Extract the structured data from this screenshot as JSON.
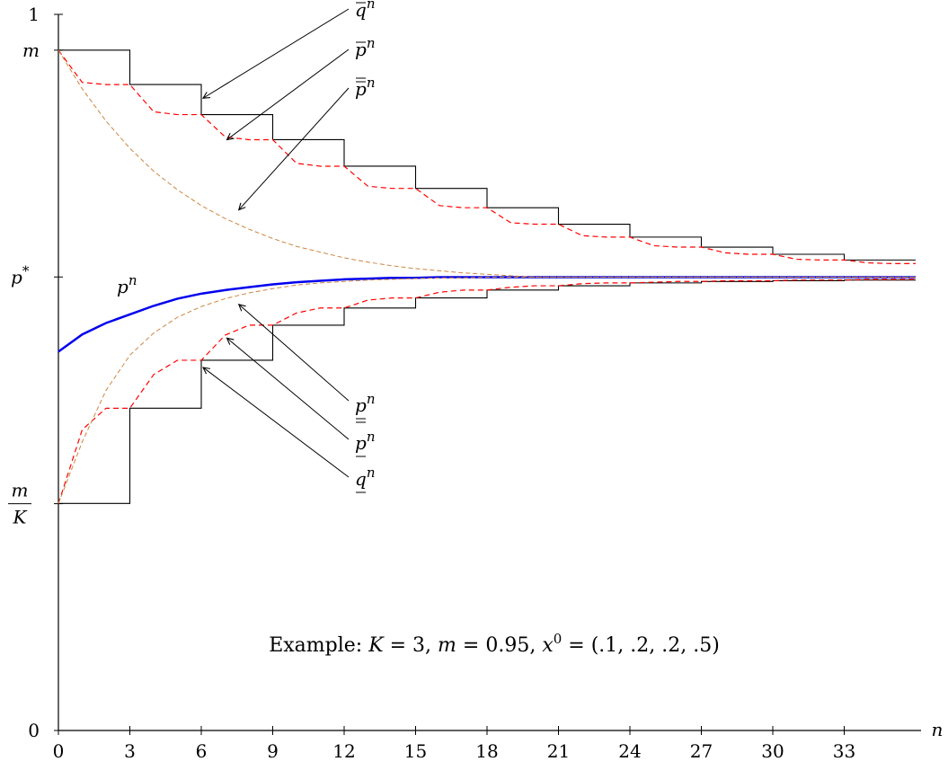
{
  "chart_data": {
    "type": "line",
    "title": "",
    "xlabel": "n",
    "ylabel": "",
    "xlim": [
      0,
      36
    ],
    "ylim": [
      0,
      1
    ],
    "x_ticks": [
      0,
      3,
      6,
      9,
      12,
      15,
      18,
      21,
      24,
      27,
      30,
      33
    ],
    "y_ticks": [
      {
        "value": 0,
        "label": "0"
      },
      {
        "value": 0.3167,
        "label": "m/K",
        "num": "m",
        "den": "K"
      },
      {
        "value": 0.6333,
        "label": "p*",
        "base": "p",
        "sup": "*"
      },
      {
        "value": 0.95,
        "label": "m"
      },
      {
        "value": 1,
        "label": "1"
      }
    ],
    "grid": false,
    "legend": "none",
    "caption": {
      "prefix": "Example: ",
      "k_var": "K",
      "k_val": " = 3, ",
      "m_var": "m",
      "m_val": " = 0.95, ",
      "x_var": "x",
      "x_sup": "0",
      "x_val": " = (.1, .2, .2, .5)"
    },
    "series": [
      {
        "name": "p^n",
        "label_base": "p",
        "label_sup": "n",
        "color": "#0000ee",
        "style": "solid",
        "x": [
          0,
          1,
          2,
          3,
          4,
          5,
          6,
          7,
          8,
          9,
          10,
          11,
          12,
          13,
          14,
          15,
          16,
          17,
          18,
          19,
          20,
          21,
          22,
          23,
          24,
          25,
          26,
          27,
          28,
          29,
          30,
          31,
          32,
          33,
          34,
          35,
          36
        ],
        "y": [
          0.529,
          0.553,
          0.569,
          0.581,
          0.593,
          0.603,
          0.61,
          0.615,
          0.619,
          0.623,
          0.626,
          0.628,
          0.63,
          0.631,
          0.632,
          0.632,
          0.633,
          0.633,
          0.633,
          0.633,
          0.633,
          0.633,
          0.633,
          0.633,
          0.633,
          0.633,
          0.633,
          0.633,
          0.633,
          0.633,
          0.633,
          0.633,
          0.633,
          0.633,
          0.633,
          0.633,
          0.633
        ]
      },
      {
        "name": "q-bar^n",
        "label_base": "q",
        "label_sup": "n",
        "label_deco": "over",
        "color": "#000000",
        "style": "step",
        "x": [
          0,
          3,
          6,
          9,
          12,
          15,
          18,
          21,
          24,
          27,
          30,
          33,
          36
        ],
        "y": [
          0.95,
          0.902,
          0.86,
          0.825,
          0.788,
          0.757,
          0.73,
          0.707,
          0.689,
          0.675,
          0.665,
          0.657,
          0.657
        ]
      },
      {
        "name": "q-under^n",
        "label_base": "q",
        "label_sup": "n",
        "label_deco": "under",
        "color": "#000000",
        "style": "step",
        "x": [
          0,
          3,
          6,
          9,
          12,
          15,
          18,
          21,
          24,
          27,
          30,
          33,
          36
        ],
        "y": [
          0.317,
          0.45,
          0.517,
          0.566,
          0.59,
          0.604,
          0.615,
          0.621,
          0.625,
          0.627,
          0.628,
          0.629,
          0.629
        ]
      },
      {
        "name": "p-bar^n",
        "label_base": "p",
        "label_sup": "n",
        "label_deco": "over",
        "color": "#ff0000",
        "style": "dashed",
        "x": [
          0,
          1,
          2,
          3,
          4,
          5,
          6,
          7,
          8,
          9,
          10,
          11,
          12,
          13,
          14,
          15,
          16,
          17,
          18,
          19,
          20,
          21,
          22,
          23,
          24,
          25,
          26,
          27,
          28,
          29,
          30,
          31,
          32,
          33,
          34,
          35,
          36
        ],
        "y": [
          0.95,
          0.905,
          0.902,
          0.902,
          0.864,
          0.86,
          0.86,
          0.829,
          0.825,
          0.825,
          0.792,
          0.788,
          0.788,
          0.76,
          0.757,
          0.757,
          0.733,
          0.73,
          0.73,
          0.709,
          0.707,
          0.707,
          0.691,
          0.689,
          0.689,
          0.677,
          0.675,
          0.675,
          0.667,
          0.665,
          0.665,
          0.658,
          0.657,
          0.657,
          0.653,
          0.652,
          0.652
        ]
      },
      {
        "name": "p-under^n",
        "label_base": "p",
        "label_sup": "n",
        "label_deco": "under",
        "color": "#ff0000",
        "style": "dashed",
        "x": [
          0,
          1,
          2,
          3,
          4,
          5,
          6,
          7,
          8,
          9,
          10,
          11,
          12,
          13,
          14,
          15,
          16,
          17,
          18,
          19,
          20,
          21,
          22,
          23,
          24,
          25,
          26,
          27,
          28,
          29,
          30,
          31,
          32,
          33,
          34,
          35,
          36
        ],
        "y": [
          0.317,
          0.42,
          0.45,
          0.45,
          0.497,
          0.517,
          0.517,
          0.552,
          0.566,
          0.566,
          0.583,
          0.59,
          0.59,
          0.601,
          0.604,
          0.604,
          0.612,
          0.615,
          0.615,
          0.619,
          0.621,
          0.621,
          0.624,
          0.625,
          0.625,
          0.626,
          0.627,
          0.627,
          0.628,
          0.628,
          0.628,
          0.629,
          0.629,
          0.629,
          0.63,
          0.63,
          0.63
        ]
      },
      {
        "name": "p-doublebar^n",
        "label_base": "p",
        "label_sup": "n",
        "label_deco": "double-over",
        "color": "#cd853f",
        "style": "dashed-thin",
        "x": [
          0,
          1,
          2,
          3,
          4,
          5,
          6,
          7,
          8,
          9,
          10,
          11,
          12,
          13,
          14,
          15,
          16,
          17,
          18,
          19,
          20,
          21,
          22,
          23,
          24,
          25,
          26,
          27,
          28,
          29,
          30,
          31,
          32,
          33,
          34,
          35,
          36
        ],
        "y": [
          0.95,
          0.896,
          0.851,
          0.813,
          0.781,
          0.755,
          0.733,
          0.715,
          0.7,
          0.687,
          0.676,
          0.668,
          0.66,
          0.654,
          0.649,
          0.645,
          0.642,
          0.639,
          0.637,
          0.635,
          0.633,
          0.633,
          0.633,
          0.633,
          0.633,
          0.633,
          0.633,
          0.633,
          0.633,
          0.633,
          0.633,
          0.633,
          0.633,
          0.633,
          0.633,
          0.633,
          0.633
        ]
      },
      {
        "name": "p-doubleunder^n",
        "label_base": "p",
        "label_sup": "n",
        "label_deco": "double-under",
        "color": "#cd853f",
        "style": "dashed-thin",
        "x": [
          0,
          1,
          2,
          3,
          4,
          5,
          6,
          7,
          8,
          9,
          10,
          11,
          12,
          13,
          14,
          15,
          16,
          17,
          18,
          19,
          20,
          21,
          22,
          23,
          24,
          25,
          26,
          27,
          28,
          29,
          30,
          31,
          32,
          33,
          34,
          35,
          36
        ],
        "y": [
          0.317,
          0.403,
          0.475,
          0.524,
          0.555,
          0.577,
          0.592,
          0.603,
          0.611,
          0.617,
          0.622,
          0.625,
          0.627,
          0.629,
          0.63,
          0.631,
          0.632,
          0.632,
          0.633,
          0.633,
          0.633,
          0.633,
          0.633,
          0.633,
          0.633,
          0.633,
          0.633,
          0.633,
          0.633,
          0.633,
          0.633,
          0.633,
          0.633,
          0.633,
          0.633,
          0.633,
          0.633
        ]
      }
    ],
    "annotations": [
      {
        "series": "q-bar^n",
        "point": [
          6,
          0.883
        ]
      },
      {
        "series": "p-bar^n",
        "point": [
          7,
          0.825
        ]
      },
      {
        "series": "p-doublebar^n",
        "point": [
          7.5,
          0.727
        ]
      },
      {
        "series": "p-doubleunder^n",
        "point": [
          7.5,
          0.595
        ]
      },
      {
        "series": "p-under^n",
        "point": [
          7,
          0.548
        ]
      },
      {
        "series": "q-under^n",
        "point": [
          6,
          0.507
        ]
      }
    ]
  }
}
